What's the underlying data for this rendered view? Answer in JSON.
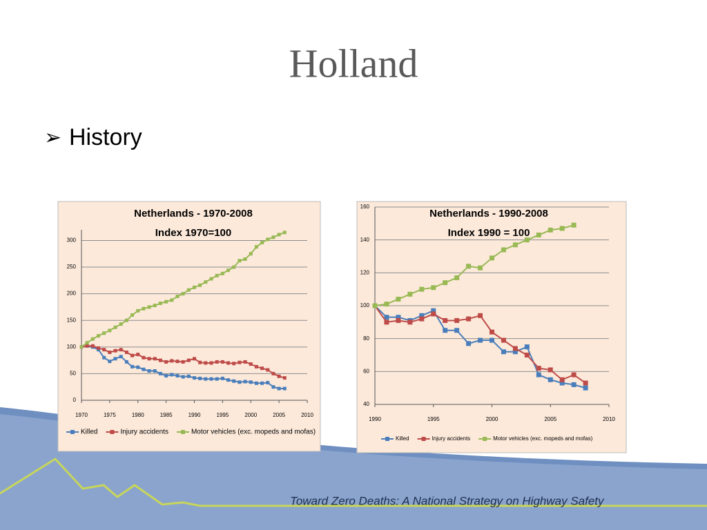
{
  "title": "Holland",
  "bullet": "History",
  "footer": "Toward Zero Deaths: A National Strategy on Highway Safety",
  "chart_data": [
    {
      "type": "line",
      "title": "Netherlands - 1970-2008",
      "subtitle": "Index 1970=100",
      "x": [
        1970,
        1971,
        1972,
        1973,
        1974,
        1975,
        1976,
        1977,
        1978,
        1979,
        1980,
        1981,
        1982,
        1983,
        1984,
        1985,
        1986,
        1987,
        1988,
        1989,
        1990,
        1991,
        1992,
        1993,
        1994,
        1995,
        1996,
        1997,
        1998,
        1999,
        2000,
        2001,
        2002,
        2003,
        2004,
        2005,
        2006
      ],
      "series": [
        {
          "name": "Killed",
          "color": "#4a7ebb",
          "values": [
            100,
            102,
            100,
            95,
            80,
            73,
            78,
            82,
            72,
            63,
            62,
            58,
            55,
            55,
            50,
            46,
            48,
            46,
            44,
            45,
            42,
            41,
            40,
            40,
            40,
            41,
            38,
            36,
            34,
            35,
            34,
            32,
            32,
            33,
            25,
            22,
            22
          ]
        },
        {
          "name": "Injury accidents",
          "color": "#be4b48",
          "values": [
            100,
            102,
            102,
            98,
            95,
            90,
            93,
            95,
            90,
            84,
            86,
            80,
            78,
            78,
            75,
            72,
            74,
            73,
            72,
            75,
            78,
            71,
            70,
            70,
            72,
            72,
            70,
            69,
            71,
            72,
            68,
            63,
            60,
            57,
            50,
            45,
            42
          ]
        },
        {
          "name": "Motor vehicles (exc. mopeds and mofas)",
          "color": "#98b954",
          "values": [
            100,
            108,
            115,
            121,
            126,
            131,
            137,
            143,
            150,
            160,
            168,
            172,
            175,
            178,
            182,
            185,
            188,
            195,
            200,
            207,
            212,
            216,
            222,
            228,
            234,
            238,
            244,
            250,
            262,
            265,
            275,
            288,
            296,
            302,
            306,
            311,
            315
          ]
        }
      ],
      "xlim": [
        1970,
        2010
      ],
      "xticks": [
        1970,
        1975,
        1980,
        1985,
        1990,
        1995,
        2000,
        2005,
        2010
      ],
      "ylim": [
        0,
        320
      ],
      "yticks": [
        0,
        50,
        100,
        150,
        200,
        250,
        300
      ],
      "grid": true,
      "legend": "bottom"
    },
    {
      "type": "line",
      "title": "Netherlands - 1990-2008",
      "subtitle": "Index 1990 = 100",
      "x": [
        1990,
        1991,
        1992,
        1993,
        1994,
        1995,
        1996,
        1997,
        1998,
        1999,
        2000,
        2001,
        2002,
        2003,
        2004,
        2005,
        2006,
        2007,
        2008
      ],
      "series": [
        {
          "name": "Killed",
          "color": "#4a7ebb",
          "values": [
            100,
            93,
            93,
            91,
            94,
            97,
            85,
            85,
            77,
            79,
            79,
            72,
            72,
            75,
            58,
            55,
            53,
            52,
            50
          ]
        },
        {
          "name": "Injury accidents",
          "color": "#be4b48",
          "values": [
            100,
            90,
            91,
            90,
            92,
            95,
            91,
            91,
            92,
            94,
            84,
            79,
            74,
            70,
            62,
            61,
            55,
            58,
            53
          ]
        },
        {
          "name": "Motor vehicles (exc. mopeds and mofas)",
          "color": "#98b954",
          "values": [
            100,
            101,
            104,
            107,
            110,
            111,
            114,
            117,
            124,
            123,
            129,
            134,
            137,
            140,
            143,
            146,
            147,
            149,
            null
          ]
        }
      ],
      "xlim": [
        1990,
        2010
      ],
      "xticks": [
        1990,
        1995,
        2000,
        2005,
        2010
      ],
      "ylim": [
        40,
        160
      ],
      "yticks": [
        40,
        60,
        80,
        100,
        120,
        140,
        160
      ],
      "grid": true,
      "legend": "bottom"
    }
  ]
}
